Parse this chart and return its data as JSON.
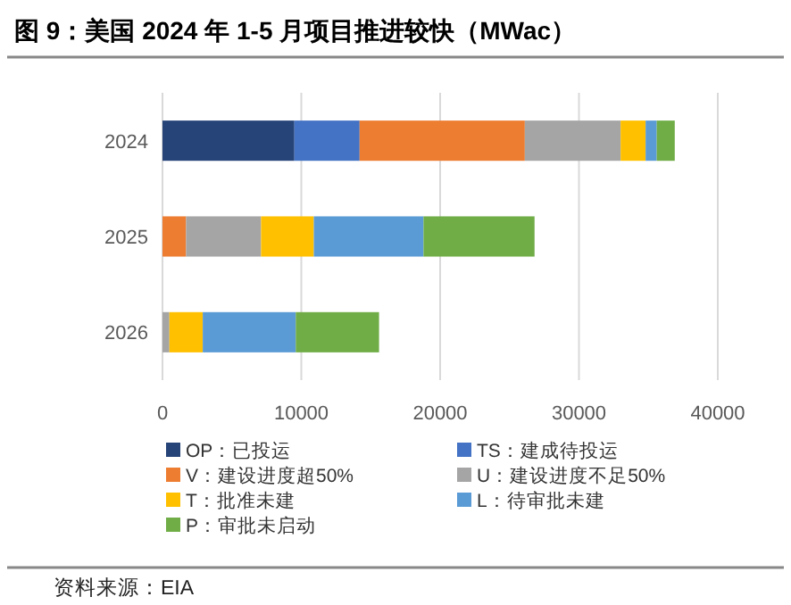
{
  "chart_data": {
    "type": "bar",
    "orientation": "horizontal",
    "stacked": true,
    "title": "图 9：美国 2024 年 1-5 月项目推进较快（MWac）",
    "categories": [
      "2024",
      "2025",
      "2026"
    ],
    "series": [
      {
        "name": "OP：已投运",
        "color": "#264478",
        "values": [
          9500,
          0,
          0
        ]
      },
      {
        "name": "TS：建成待投运",
        "color": "#4472c4",
        "values": [
          4700,
          0,
          0
        ]
      },
      {
        "name": "V：建设进度超50%",
        "color": "#ed7d31",
        "values": [
          11900,
          1700,
          0
        ]
      },
      {
        "name": "U：建设进度不足50%",
        "color": "#a5a5a5",
        "values": [
          6900,
          5400,
          500
        ]
      },
      {
        "name": "T：批准未建",
        "color": "#ffc000",
        "values": [
          1800,
          3800,
          2400
        ]
      },
      {
        "name": "L：待审批未建",
        "color": "#5b9bd5",
        "values": [
          800,
          7900,
          6700
        ]
      },
      {
        "name": "P：审批未启动",
        "color": "#70ad47",
        "values": [
          1300,
          8000,
          6000
        ]
      }
    ],
    "xlim": [
      0,
      40000
    ],
    "xticks": [
      0,
      10000,
      20000,
      30000,
      40000
    ],
    "grid": "x",
    "legend": "bottom",
    "annotations": [
      "资料来源：EIA"
    ]
  }
}
